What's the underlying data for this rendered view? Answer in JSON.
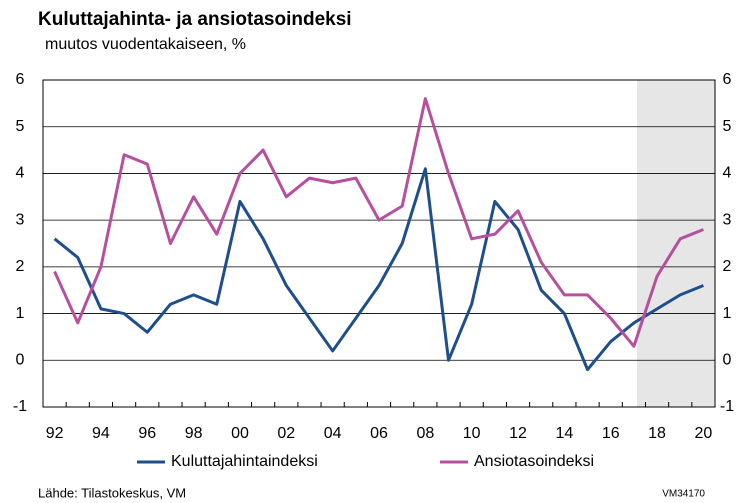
{
  "chart_data": {
    "type": "line",
    "title": "Kuluttajahinta- ja ansiotasoindeksi",
    "subtitle": "muutos vuodentakaiseen, %",
    "source": "Lähde: Tilastokeskus, VM",
    "code": "VM34170",
    "categories": [
      "92",
      null,
      "94",
      null,
      "96",
      null,
      "98",
      null,
      "00",
      null,
      "02",
      null,
      "04",
      null,
      "06",
      null,
      "08",
      null,
      "10",
      null,
      "12",
      null,
      "14",
      null,
      "16",
      null,
      "18",
      null,
      "20"
    ],
    "series": [
      {
        "name": "Kuluttajahintaindeksi",
        "color": "#1f4e8c",
        "values": [
          2.6,
          2.2,
          1.1,
          1.0,
          0.6,
          1.2,
          1.4,
          1.2,
          3.4,
          2.6,
          1.6,
          0.9,
          0.2,
          0.9,
          1.6,
          2.5,
          4.1,
          0.0,
          1.2,
          3.4,
          2.8,
          1.5,
          1.0,
          -0.2,
          0.4,
          0.8,
          1.1,
          1.4,
          1.6
        ]
      },
      {
        "name": "Ansiotasoindeksi",
        "color": "#b6509e",
        "values": [
          1.9,
          0.8,
          2.0,
          4.4,
          4.2,
          2.5,
          3.5,
          2.7,
          4.0,
          4.5,
          3.5,
          3.9,
          3.8,
          3.9,
          3.0,
          3.3,
          5.6,
          4.0,
          2.6,
          2.7,
          3.2,
          2.1,
          1.4,
          1.4,
          0.9,
          0.3,
          1.8,
          2.6,
          2.8
        ]
      }
    ],
    "ylim": [
      -1,
      6
    ],
    "yticks": [
      -1,
      0,
      1,
      2,
      3,
      4,
      5,
      6
    ],
    "grid": true,
    "legend": "bottom"
  }
}
